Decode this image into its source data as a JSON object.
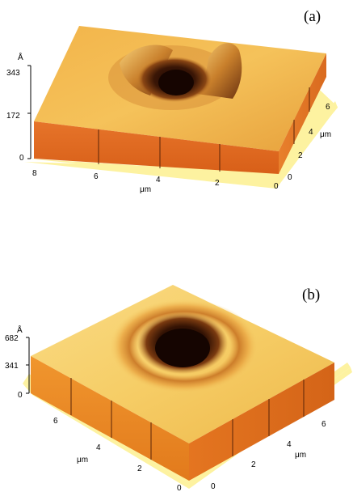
{
  "panels": [
    {
      "label": "(a)",
      "z_unit": "Å",
      "z_ticks": [
        "343",
        "172",
        "0"
      ],
      "front_ticks": [
        "8",
        "6",
        "4",
        "2",
        "0"
      ],
      "front_unit": "μm",
      "side_ticks": [
        "6",
        "4",
        "2",
        "0"
      ],
      "side_unit": "μm"
    },
    {
      "label": "(b)",
      "z_unit": "Å",
      "z_ticks": [
        "682",
        "341",
        "0"
      ],
      "front_ticks": [
        "6",
        "4",
        "2",
        "0"
      ],
      "front_unit": "μm",
      "side_ticks": [
        "0",
        "2",
        "4",
        "6"
      ],
      "side_unit": "μm"
    }
  ],
  "colors": {
    "surface_light": "#f5c556",
    "surface_mid": "#e8a53d",
    "crater_dark": "#2a0e04",
    "front_face": "#e06b1e",
    "base_plate": "#fdf2a0"
  }
}
